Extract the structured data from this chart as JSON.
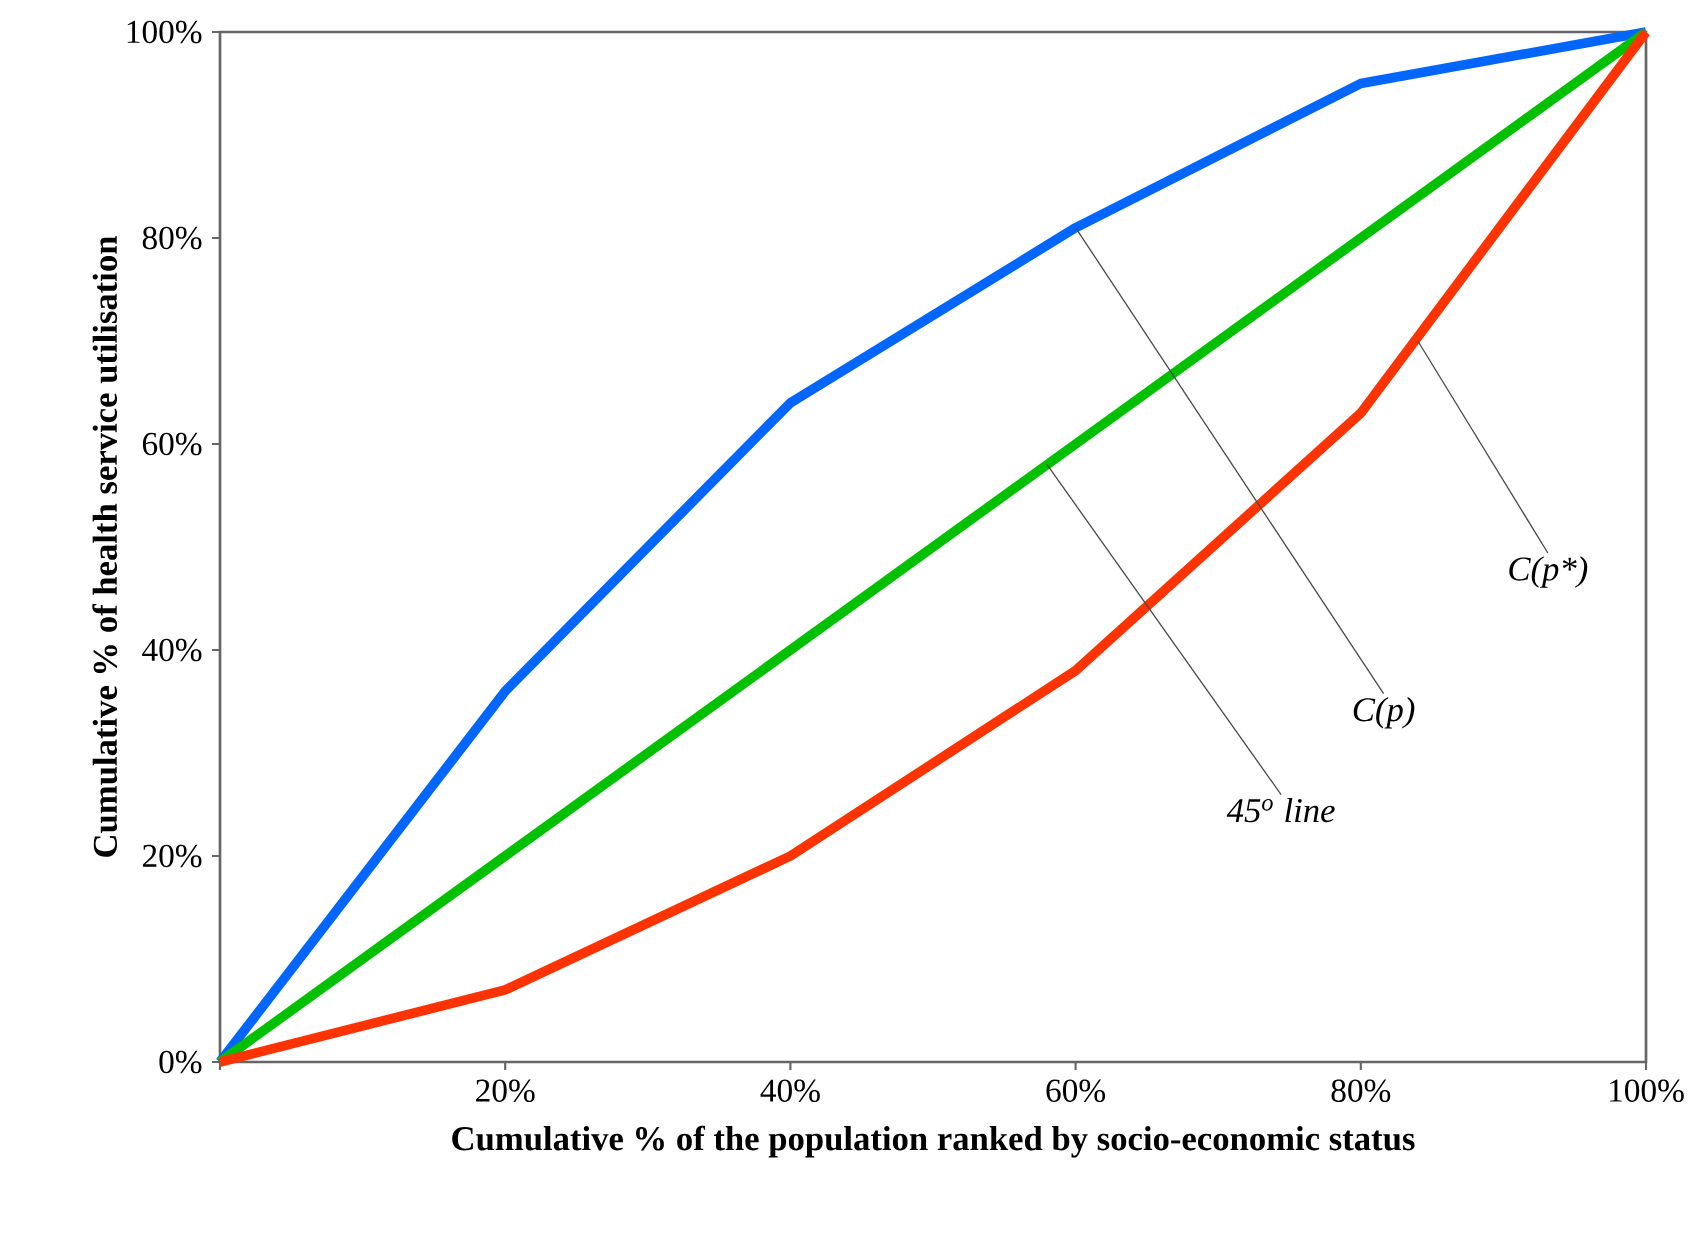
{
  "chart_data": {
    "type": "line",
    "xlabel": "Cumulative % of the population ranked by socio-economic status",
    "ylabel": "Cumulative % of health service utilisation",
    "x": [
      0,
      20,
      40,
      60,
      80,
      100
    ],
    "series": [
      {
        "color": "#0066ff",
        "values": [
          0,
          36,
          64,
          81,
          95,
          100
        ]
      },
      {
        "color": "#00c000",
        "values": [
          0,
          20,
          40,
          60,
          80,
          100
        ]
      },
      {
        "color": "#ff3300",
        "values": [
          0,
          7,
          20,
          38,
          63,
          100
        ]
      }
    ],
    "xlim": [
      0,
      100
    ],
    "ylim": [
      0,
      100
    ],
    "xticks": [
      {
        "value": 0,
        "label": null
      },
      {
        "value": 20,
        "label": "20%"
      },
      {
        "value": 40,
        "label": "40%"
      },
      {
        "value": 60,
        "label": "60%"
      },
      {
        "value": 80,
        "label": "80%"
      },
      {
        "value": 100,
        "label": "100%"
      }
    ],
    "yticks": [
      {
        "value": 0,
        "label": "0%"
      },
      {
        "value": 20,
        "label": "20%"
      },
      {
        "value": 40,
        "label": "40%"
      },
      {
        "value": 60,
        "label": "60%"
      },
      {
        "value": 80,
        "label": "80%"
      },
      {
        "value": 100,
        "label": "100%"
      }
    ],
    "annotations": [
      {
        "text": "C(p)",
        "x": 60,
        "y": 81
      },
      {
        "text": "45$^{o}$ line",
        "x": 58,
        "y": 58
      },
      {
        "text": "C(p*)",
        "x": 84,
        "y": 70
      }
    ],
    "grid": false,
    "marker": "none",
    "line_style": "solid"
  }
}
